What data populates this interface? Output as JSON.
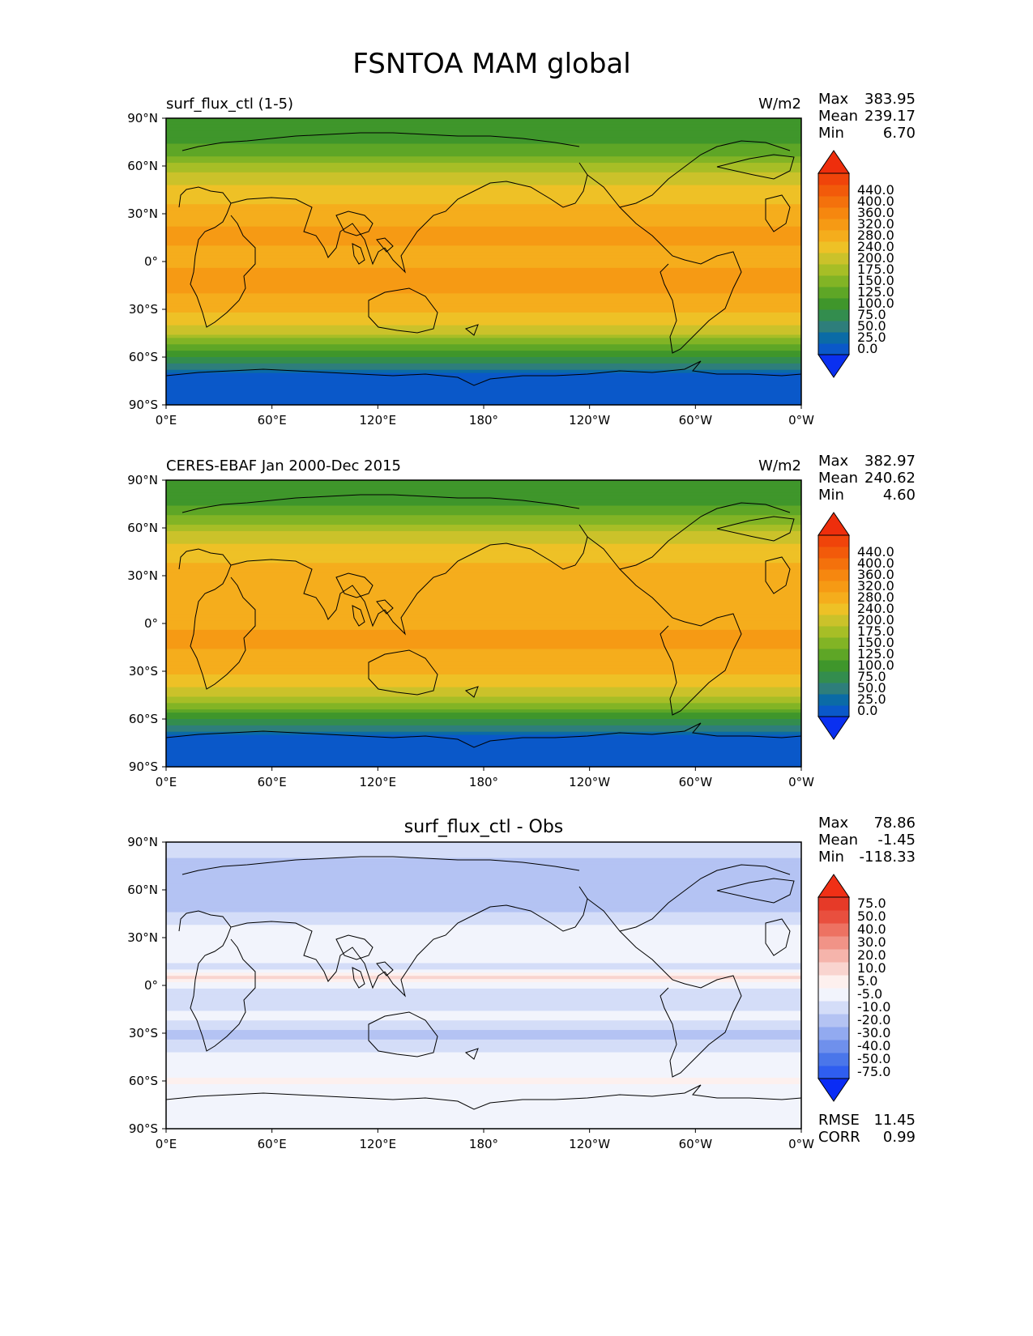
{
  "figure_title": "FSNTOA MAM global",
  "colors": {
    "land_outline": "#000000",
    "frame": "#000000"
  },
  "chart_data": [
    {
      "type": "heatmap",
      "title": "surf_flux_ctl (1-5)",
      "units": "W/m2",
      "stats": [
        {
          "label": "Max",
          "value": "383.95"
        },
        {
          "label": "Mean",
          "value": "239.17"
        },
        {
          "label": "Min",
          "value": "6.70"
        }
      ],
      "x_ticks": [
        "0°E",
        "60°E",
        "120°E",
        "180°",
        "120°W",
        "60°W",
        "0°W"
      ],
      "y_ticks": [
        "90°N",
        "60°N",
        "30°N",
        "0°",
        "30°S",
        "60°S",
        "90°S"
      ],
      "xlim": [
        0,
        360
      ],
      "ylim": [
        -90,
        90
      ],
      "colorbar": {
        "extend": "both",
        "colors": [
          "#0a30f0",
          "#0a58c9",
          "#0b6ba6",
          "#2e7e7b",
          "#338d4e",
          "#3f962b",
          "#5ea626",
          "#82b425",
          "#a7be26",
          "#cbc22a",
          "#eec126",
          "#f5ad1c",
          "#f69a14",
          "#f6870f",
          "#f4710c",
          "#f25a0a",
          "#f0440a",
          "#ee2e0c"
        ],
        "ticks": [
          "0.0",
          "25.0",
          "50.0",
          "75.0",
          "100.0",
          "125.0",
          "150.0",
          "175.0",
          "200.0",
          "240.0",
          "280.0",
          "320.0",
          "360.0",
          "400.0",
          "440.0"
        ]
      },
      "zonal_profile": [
        {
          "lat": 90,
          "value": 110
        },
        {
          "lat": 80,
          "value": 115
        },
        {
          "lat": 70,
          "value": 130
        },
        {
          "lat": 60,
          "value": 180
        },
        {
          "lat": 50,
          "value": 235
        },
        {
          "lat": 40,
          "value": 270
        },
        {
          "lat": 30,
          "value": 300
        },
        {
          "lat": 20,
          "value": 325
        },
        {
          "lat": 10,
          "value": 320
        },
        {
          "lat": 0,
          "value": 310
        },
        {
          "lat": -10,
          "value": 330
        },
        {
          "lat": -20,
          "value": 320
        },
        {
          "lat": -30,
          "value": 285
        },
        {
          "lat": -40,
          "value": 235
        },
        {
          "lat": -50,
          "value": 165
        },
        {
          "lat": -60,
          "value": 100
        },
        {
          "lat": -65,
          "value": 70
        },
        {
          "lat": -70,
          "value": 25
        },
        {
          "lat": -80,
          "value": 15
        },
        {
          "lat": -90,
          "value": 10
        }
      ]
    },
    {
      "type": "heatmap",
      "title": "CERES-EBAF Jan 2000-Dec 2015",
      "units": "W/m2",
      "stats": [
        {
          "label": "Max",
          "value": "382.97"
        },
        {
          "label": "Mean",
          "value": "240.62"
        },
        {
          "label": "Min",
          "value": "4.60"
        }
      ],
      "x_ticks": [
        "0°E",
        "60°E",
        "120°E",
        "180°",
        "120°W",
        "60°W",
        "0°W"
      ],
      "y_ticks": [
        "90°N",
        "60°N",
        "30°N",
        "0°",
        "30°S",
        "60°S",
        "90°S"
      ],
      "xlim": [
        0,
        360
      ],
      "ylim": [
        -90,
        90
      ],
      "colorbar": {
        "extend": "both",
        "colors": [
          "#0a30f0",
          "#0a58c9",
          "#0b6ba6",
          "#2e7e7b",
          "#338d4e",
          "#3f962b",
          "#5ea626",
          "#82b425",
          "#a7be26",
          "#cbc22a",
          "#eec126",
          "#f5ad1c",
          "#f69a14",
          "#f6870f",
          "#f4710c",
          "#f25a0a",
          "#f0440a",
          "#ee2e0c"
        ],
        "ticks": [
          "0.0",
          "25.0",
          "50.0",
          "75.0",
          "100.0",
          "125.0",
          "150.0",
          "175.0",
          "200.0",
          "240.0",
          "280.0",
          "320.0",
          "360.0",
          "400.0",
          "440.0"
        ]
      },
      "zonal_profile": [
        {
          "lat": 90,
          "value": 105
        },
        {
          "lat": 80,
          "value": 112
        },
        {
          "lat": 70,
          "value": 135
        },
        {
          "lat": 60,
          "value": 185
        },
        {
          "lat": 50,
          "value": 240
        },
        {
          "lat": 40,
          "value": 275
        },
        {
          "lat": 30,
          "value": 300
        },
        {
          "lat": 20,
          "value": 320
        },
        {
          "lat": 10,
          "value": 305
        },
        {
          "lat": 0,
          "value": 315
        },
        {
          "lat": -10,
          "value": 325
        },
        {
          "lat": -20,
          "value": 315
        },
        {
          "lat": -30,
          "value": 285
        },
        {
          "lat": -40,
          "value": 240
        },
        {
          "lat": -50,
          "value": 170
        },
        {
          "lat": -60,
          "value": 105
        },
        {
          "lat": -65,
          "value": 70
        },
        {
          "lat": -70,
          "value": 25
        },
        {
          "lat": -80,
          "value": 15
        },
        {
          "lat": -90,
          "value": 8
        }
      ]
    },
    {
      "type": "heatmap",
      "title": "surf_flux_ctl - Obs",
      "units": "",
      "stats": [
        {
          "label": "Max",
          "value": "78.86"
        },
        {
          "label": "Mean",
          "value": "-1.45"
        },
        {
          "label": "Min",
          "value": "-118.33"
        }
      ],
      "extra_stats": [
        {
          "label": "RMSE",
          "value": "11.45"
        },
        {
          "label": "CORR",
          "value": "0.99"
        }
      ],
      "x_ticks": [
        "0°E",
        "60°E",
        "120°E",
        "180°",
        "120°W",
        "60°W",
        "0°W"
      ],
      "y_ticks": [
        "90°N",
        "60°N",
        "30°N",
        "0°",
        "30°S",
        "60°S",
        "90°S"
      ],
      "xlim": [
        0,
        360
      ],
      "ylim": [
        -90,
        90
      ],
      "colorbar": {
        "extend": "both",
        "colors": [
          "#0a2cf5",
          "#2f5ef0",
          "#4a76ea",
          "#6f90ec",
          "#92aaf0",
          "#b4c3f3",
          "#d4ddf8",
          "#f2f4fc",
          "#fdf0ee",
          "#f9d4cf",
          "#f5b4ab",
          "#f19387",
          "#ed7262",
          "#e94f3e",
          "#e63a28",
          "#f03016"
        ],
        "ticks": [
          "-75.0",
          "-50.0",
          "-40.0",
          "-30.0",
          "-20.0",
          "-10.0",
          "-5.0",
          "5.0",
          "10.0",
          "20.0",
          "30.0",
          "40.0",
          "50.0",
          "75.0"
        ]
      },
      "zonal_profile": [
        {
          "lat": 90,
          "value": -5
        },
        {
          "lat": 80,
          "value": -10
        },
        {
          "lat": 70,
          "value": -12
        },
        {
          "lat": 60,
          "value": -15
        },
        {
          "lat": 50,
          "value": -12
        },
        {
          "lat": 40,
          "value": -8
        },
        {
          "lat": 30,
          "value": 5
        },
        {
          "lat": 20,
          "value": -3
        },
        {
          "lat": 10,
          "value": -6
        },
        {
          "lat": 5,
          "value": 15
        },
        {
          "lat": 0,
          "value": -4
        },
        {
          "lat": -10,
          "value": -8
        },
        {
          "lat": -20,
          "value": -3
        },
        {
          "lat": -30,
          "value": -12
        },
        {
          "lat": -40,
          "value": -8
        },
        {
          "lat": -50,
          "value": 2
        },
        {
          "lat": -60,
          "value": 6
        },
        {
          "lat": -70,
          "value": 0
        },
        {
          "lat": -80,
          "value": 0
        },
        {
          "lat": -90,
          "value": 0
        }
      ]
    }
  ]
}
